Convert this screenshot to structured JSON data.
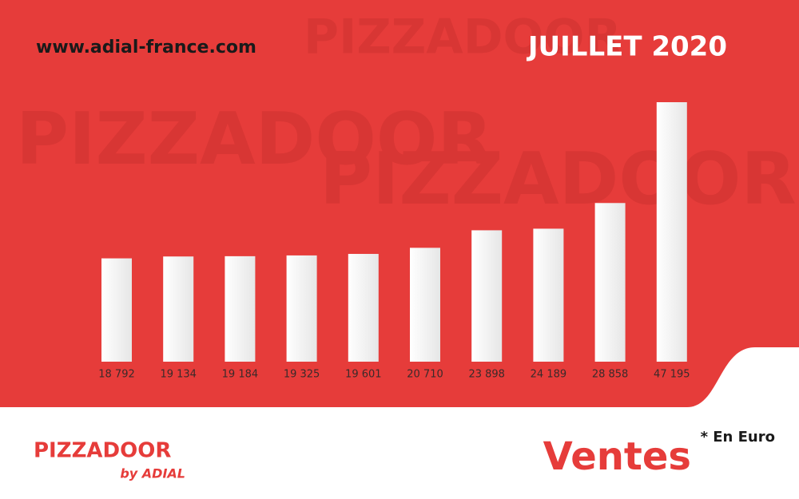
{
  "chart_data": {
    "type": "bar",
    "site": "www.adial-france.com",
    "title": "JUILLET 2020",
    "subtitle": "Ventes",
    "unit_note": "* En Euro",
    "brand": {
      "name": "PIZZADOOR",
      "tagline": "by ADIAL"
    },
    "values": [
      18792,
      19134,
      19184,
      19325,
      19601,
      20710,
      23898,
      24189,
      28858,
      47195
    ],
    "value_labels": [
      "18 792",
      "19 134",
      "19 184",
      "19 325",
      "19 601",
      "20 710",
      "23 898",
      "24 189",
      "28 858",
      "47 195"
    ],
    "color": "#ffffff"
  }
}
